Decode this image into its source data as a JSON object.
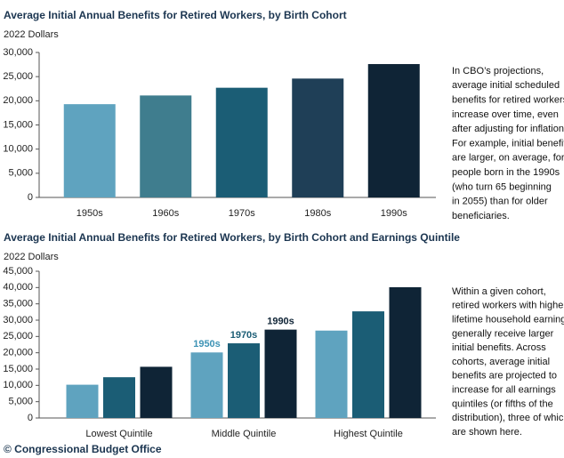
{
  "chart_data": [
    {
      "type": "bar",
      "title": "Average Initial Annual Benefits for Retired Workers, by Birth Cohort",
      "subtitle": "2022 Dollars",
      "categories": [
        "1950s",
        "1960s",
        "1970s",
        "1980s",
        "1990s"
      ],
      "values": [
        19300,
        21100,
        22700,
        24600,
        27600
      ],
      "colors": [
        "#5fa3bf",
        "#3f7d8e",
        "#1b5d75",
        "#1f3f57",
        "#0f2436"
      ],
      "ylim": [
        0,
        30000
      ],
      "yticks": [
        0,
        {
          "value": 5000,
          "label": "5,000"
        },
        {
          "value": 10000,
          "label": "10,000"
        },
        {
          "value": 15000,
          "label": "15,000"
        },
        {
          "value": 20000,
          "label": "20,000"
        },
        {
          "value": 25000,
          "label": "25,000"
        },
        {
          "value": 30000,
          "label": "30,000"
        }
      ],
      "annotation": [
        "In CBO’s projections,",
        "average initial scheduled",
        "benefits for retired workers",
        "increase over time, even",
        "after adjusting for inflation.",
        "For example, initial benefits",
        "are larger, on average, for",
        "people born in the 1990s",
        "(who turn 65 beginning",
        "in 2055) than for older",
        "beneficiaries."
      ]
    },
    {
      "type": "grouped_bar",
      "title": "Average Initial Annual Benefits for Retired Workers, by Birth Cohort and Earnings Quintile",
      "subtitle": "2022 Dollars",
      "categories": [
        "Lowest Quintile",
        "Middle Quintile",
        "Highest Quintile"
      ],
      "series": [
        {
          "name": "1950s",
          "color": "#5fa3bf",
          "label_color": "#3d93b5",
          "values": [
            10200,
            20100,
            26800
          ]
        },
        {
          "name": "1970s",
          "color": "#1b5d75",
          "label_color": "#1b5d75",
          "values": [
            12500,
            22900,
            32700
          ]
        },
        {
          "name": "1990s",
          "color": "#0f2436",
          "label_color": "#0f2436",
          "values": [
            15700,
            27100,
            40100
          ]
        }
      ],
      "ylim": [
        0,
        45000
      ],
      "yticks": [
        0,
        {
          "value": 5000,
          "label": "5,000"
        },
        {
          "value": 10000,
          "label": "10,000"
        },
        {
          "value": 15000,
          "label": "15,000"
        },
        {
          "value": 20000,
          "label": "20,000"
        },
        {
          "value": 25000,
          "label": "25,000"
        },
        {
          "value": 30000,
          "label": "30,000"
        },
        {
          "value": 35000,
          "label": "35,000"
        },
        {
          "value": 40000,
          "label": "40,000"
        },
        {
          "value": 45000,
          "label": "45,000"
        }
      ],
      "annotation": [
        "Within a given cohort,",
        "retired workers with higher",
        "lifetime household earnings",
        "generally receive larger",
        "initial benefits. Across",
        "cohorts, average initial",
        "benefits are projected to",
        "increase for all earnings",
        "quintiles (or fifths of the",
        "distribution), three of which",
        "are shown here."
      ]
    }
  ],
  "source": "© Congressional Budget Office"
}
